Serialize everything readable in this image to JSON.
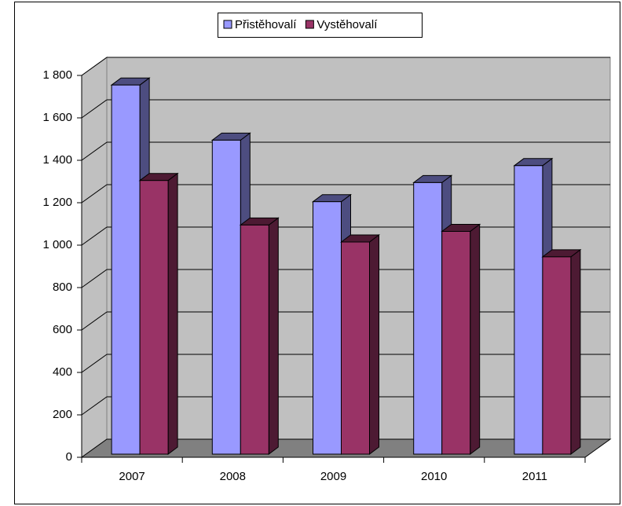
{
  "chart_data": {
    "type": "bar3d",
    "categories": [
      "2007",
      "2008",
      "2009",
      "2010",
      "2011"
    ],
    "series": [
      {
        "name": "Přistěhovalí",
        "color": "#9999ff",
        "values": [
          1740,
          1480,
          1190,
          1280,
          1360
        ]
      },
      {
        "name": "Vystěhovalí",
        "color": "#993366",
        "values": [
          1290,
          1080,
          1000,
          1050,
          930
        ]
      }
    ],
    "ylim": [
      0,
      1800
    ],
    "yticks": [
      0,
      200,
      400,
      600,
      800,
      {
        "value": 1000,
        "label": "1 000"
      },
      {
        "value": 1200,
        "label": "1 200"
      },
      {
        "value": 1400,
        "label": "1 400"
      },
      {
        "value": 1600,
        "label": "1 600"
      },
      {
        "value": 1800,
        "label": "1 800"
      }
    ],
    "grid": true
  }
}
